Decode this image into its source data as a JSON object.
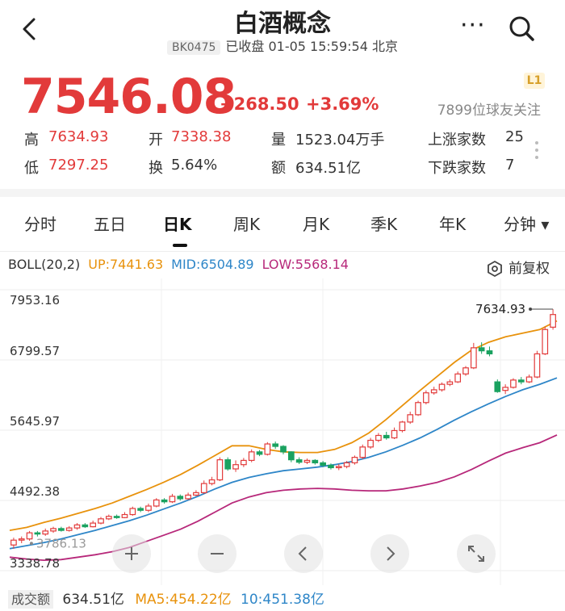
{
  "header": {
    "title": "白酒概念",
    "code": "BK0475",
    "status": "已收盘 01-05 15:59:54 北京",
    "icons": [
      "back-arrow-icon",
      "more-dots-icon",
      "search-icon"
    ]
  },
  "quote": {
    "price": "7546.08",
    "change": "+268.50",
    "change_pct": "+3.69%",
    "level_badge": "L1",
    "followers": "7899位球友关注",
    "high_label": "高",
    "high": "7634.93",
    "low_label": "低",
    "low": "7297.25",
    "open_label": "开",
    "open": "7338.38",
    "turnover_label": "换",
    "turnover": "5.64%",
    "volume_label": "量",
    "volume": "1523.04万手",
    "amount_label": "额",
    "amount": "634.51亿",
    "rise_label": "上涨家数",
    "rise": "25",
    "fall_label": "下跌家数",
    "fall": "7",
    "up_color": "#e23a3a",
    "down_color": "#1aa260"
  },
  "tabs": [
    {
      "label": "分时"
    },
    {
      "label": "五日"
    },
    {
      "label": "日K",
      "active": true
    },
    {
      "label": "周K"
    },
    {
      "label": "月K"
    },
    {
      "label": "季K"
    },
    {
      "label": "年K"
    },
    {
      "label": "分钟 ▾"
    }
  ],
  "boll": {
    "name": "BOLL(20,2)",
    "up": "UP:7441.63",
    "mid": "MID:6504.89",
    "low": "LOW:5568.14",
    "up_color": "#e8920c",
    "mid_color": "#2e86c8",
    "low_color": "#b7287a",
    "adjust_label": "前复权"
  },
  "chart_data": {
    "type": "candlestick",
    "y_ticks": [
      "7953.16",
      "6799.57",
      "5645.97",
      "4492.38",
      "3338.78"
    ],
    "ylim": [
      3338.78,
      7953.16
    ],
    "last_low_label": "3786.13",
    "max_label": "7634.93",
    "candles": [
      [
        3760,
        3840,
        3700,
        3880
      ],
      [
        3840,
        3860,
        3790,
        3900
      ],
      [
        3860,
        3960,
        3830,
        3990
      ],
      [
        3960,
        3940,
        3900,
        3990
      ],
      [
        3940,
        3990,
        3910,
        4030
      ],
      [
        3990,
        4030,
        3960,
        4060
      ],
      [
        4030,
        4000,
        3980,
        4060
      ],
      [
        4000,
        4040,
        3980,
        4070
      ],
      [
        4040,
        4090,
        4010,
        4120
      ],
      [
        4090,
        4060,
        4040,
        4120
      ],
      [
        4060,
        4120,
        4050,
        4160
      ],
      [
        4120,
        4190,
        4100,
        4220
      ],
      [
        4190,
        4230,
        4170,
        4260
      ],
      [
        4230,
        4210,
        4190,
        4260
      ],
      [
        4210,
        4260,
        4200,
        4300
      ],
      [
        4260,
        4360,
        4240,
        4390
      ],
      [
        4360,
        4330,
        4300,
        4390
      ],
      [
        4330,
        4400,
        4300,
        4440
      ],
      [
        4400,
        4500,
        4380,
        4530
      ],
      [
        4500,
        4470,
        4440,
        4530
      ],
      [
        4470,
        4560,
        4450,
        4600
      ],
      [
        4560,
        4520,
        4490,
        4590
      ],
      [
        4520,
        4580,
        4500,
        4620
      ],
      [
        4580,
        4620,
        4560,
        4660
      ],
      [
        4620,
        4770,
        4600,
        4820
      ],
      [
        4770,
        4830,
        4740,
        4880
      ],
      [
        4830,
        5160,
        4810,
        5200
      ],
      [
        5160,
        5010,
        4980,
        5200
      ],
      [
        5010,
        5080,
        4960,
        5150
      ],
      [
        5080,
        5150,
        5040,
        5190
      ],
      [
        5150,
        5290,
        5120,
        5330
      ],
      [
        5290,
        5250,
        5220,
        5320
      ],
      [
        5250,
        5420,
        5230,
        5450
      ],
      [
        5420,
        5380,
        5340,
        5460
      ],
      [
        5380,
        5290,
        5250,
        5400
      ],
      [
        5290,
        5160,
        5120,
        5300
      ],
      [
        5160,
        5120,
        5090,
        5200
      ],
      [
        5120,
        5150,
        5090,
        5180
      ],
      [
        5150,
        5110,
        5080,
        5170
      ],
      [
        5110,
        5070,
        5040,
        5140
      ],
      [
        5070,
        5030,
        5000,
        5100
      ],
      [
        5030,
        5050,
        4990,
        5090
      ],
      [
        5050,
        5110,
        5020,
        5140
      ],
      [
        5110,
        5200,
        5080,
        5230
      ],
      [
        5200,
        5370,
        5170,
        5410
      ],
      [
        5370,
        5480,
        5340,
        5520
      ],
      [
        5480,
        5560,
        5450,
        5600
      ],
      [
        5560,
        5520,
        5490,
        5620
      ],
      [
        5520,
        5640,
        5500,
        5690
      ],
      [
        5640,
        5780,
        5610,
        5800
      ],
      [
        5780,
        5900,
        5750,
        5950
      ],
      [
        5900,
        6100,
        5880,
        6130
      ],
      [
        6100,
        6260,
        6070,
        6300
      ],
      [
        6260,
        6310,
        6230,
        6360
      ],
      [
        6310,
        6400,
        6280,
        6430
      ],
      [
        6400,
        6440,
        6370,
        6480
      ],
      [
        6440,
        6570,
        6420,
        6610
      ],
      [
        6570,
        6670,
        6540,
        6700
      ],
      [
        6670,
        7000,
        6650,
        7080
      ],
      [
        7000,
        6950,
        6900,
        7090
      ],
      [
        6950,
        6900,
        6860,
        7020
      ],
      [
        6440,
        6280,
        6260,
        6480
      ],
      [
        6300,
        6350,
        6240,
        6400
      ],
      [
        6350,
        6470,
        6330,
        6500
      ],
      [
        6470,
        6440,
        6400,
        6520
      ],
      [
        6440,
        6520,
        6420,
        6560
      ],
      [
        6520,
        6900,
        6500,
        6950
      ],
      [
        6900,
        7300,
        6880,
        7350
      ],
      [
        7338.38,
        7546.08,
        7297.25,
        7634.93
      ]
    ],
    "mid": [
      3700,
      3750,
      3800,
      3860,
      3930,
      4000,
      4080,
      4160,
      4250,
      4350,
      4450,
      4560,
      4680,
      4790,
      4870,
      4930,
      4980,
      5010,
      5040,
      5080,
      5130,
      5200,
      5290,
      5400,
      5520,
      5660,
      5810,
      5950,
      6080,
      6200,
      6310,
      6400,
      6504.89
    ],
    "up": [
      4000,
      4050,
      4130,
      4200,
      4280,
      4360,
      4450,
      4560,
      4670,
      4790,
      4920,
      5070,
      5230,
      5390,
      5390,
      5330,
      5290,
      5280,
      5280,
      5330,
      5440,
      5600,
      5820,
      6060,
      6300,
      6530,
      6760,
      6960,
      7090,
      7180,
      7240,
      7300,
      7441.63
    ],
    "low": [
      3560,
      3530,
      3510,
      3520,
      3560,
      3600,
      3650,
      3720,
      3820,
      3920,
      4020,
      4150,
      4300,
      4450,
      4550,
      4620,
      4660,
      4680,
      4690,
      4680,
      4660,
      4650,
      4650,
      4680,
      4730,
      4790,
      4880,
      5000,
      5140,
      5270,
      5360,
      5440,
      5568.14
    ],
    "xlabel": "",
    "ylabel": "",
    "grid": true
  },
  "controls": [
    {
      "name": "zoom-in-icon",
      "glyph": "+"
    },
    {
      "name": "zoom-out-icon",
      "glyph": "−"
    },
    {
      "name": "left-arrow-icon",
      "glyph": "‹"
    },
    {
      "name": "right-arrow-icon",
      "glyph": "›"
    },
    {
      "name": "fullscreen-icon",
      "glyph": "⤢"
    }
  ],
  "volume": {
    "label": "成交额",
    "amount": "634.51亿",
    "ma5": "MA5:454.22亿",
    "ma10": "10:451.38亿",
    "ma5_color": "#e8920c",
    "ma10_color": "#2e86c8"
  }
}
